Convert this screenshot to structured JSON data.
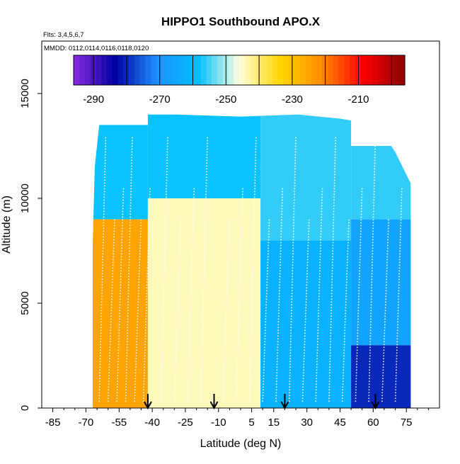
{
  "chart_data": {
    "type": "heatmap",
    "title": "HIPPO1 Southbound APO.X",
    "subtitle_flights": "Flts: 3,4,5,6,7",
    "subtitle_dates": "MMDD: 0112,0114,0116,0118,0120",
    "xlabel": "Latitude (deg N)",
    "ylabel": "Altitude (m)",
    "xlim": [
      -90,
      90
    ],
    "ylim": [
      0,
      17500
    ],
    "x_ticks": [
      -85,
      -70,
      -55,
      -40,
      -25,
      -10,
      5,
      15,
      30,
      45,
      60,
      75
    ],
    "x_tick_labels": [
      "-85",
      "-70",
      "-55",
      "-40",
      "-25",
      "-10",
      "5",
      "15",
      "30",
      "45",
      "60",
      "75"
    ],
    "y_ticks": [
      0,
      5000,
      10000,
      15000
    ],
    "y_tick_labels": [
      "0",
      "5000",
      "10000",
      "15000"
    ],
    "colorbar": {
      "min": -296,
      "max": -196,
      "ticks": [
        -290,
        -270,
        -250,
        -230,
        -210
      ],
      "tick_labels": [
        "-290",
        "-270",
        "-250",
        "-230",
        "-210"
      ],
      "colors": [
        "#8a2be2",
        "#0000a0",
        "#1e90ff",
        "#00bfff",
        "#ffffe0",
        "#ffd700",
        "#ff8c00",
        "#ff0000",
        "#8b0000"
      ]
    },
    "profile_latitudes": [
      -42,
      -12,
      20,
      61
    ],
    "cells": [
      {
        "lat_range": [
          -67,
          -42
        ],
        "alt_range": [
          0,
          9000
        ],
        "value": -225
      },
      {
        "lat_range": [
          -67,
          -42
        ],
        "alt_range": [
          9000,
          13500
        ],
        "value": -258
      },
      {
        "lat_range": [
          -42,
          9
        ],
        "alt_range": [
          0,
          10000
        ],
        "value": -244
      },
      {
        "lat_range": [
          -42,
          9
        ],
        "alt_range": [
          10000,
          14000
        ],
        "value": -258
      },
      {
        "lat_range": [
          9,
          50
        ],
        "alt_range": [
          0,
          8000
        ],
        "value": -262
      },
      {
        "lat_range": [
          9,
          50
        ],
        "alt_range": [
          8000,
          14000
        ],
        "value": -256
      },
      {
        "lat_range": [
          50,
          77
        ],
        "alt_range": [
          0,
          3000
        ],
        "value": -280
      },
      {
        "lat_range": [
          50,
          77
        ],
        "alt_range": [
          3000,
          9000
        ],
        "value": -266
      },
      {
        "lat_range": [
          50,
          77
        ],
        "alt_range": [
          9000,
          12500
        ],
        "value": -256
      }
    ]
  }
}
